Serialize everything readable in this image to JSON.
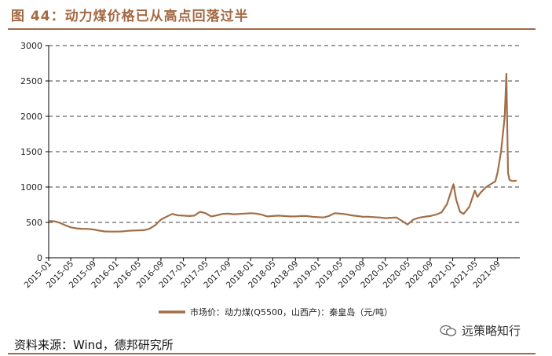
{
  "header": {
    "title": "图 44：动力煤价格已从高点回落过半"
  },
  "footer": {
    "source": "资料来源：Wind，德邦研究所"
  },
  "watermark": {
    "text": "远策略知行",
    "icon": "wechat-icon"
  },
  "colors": {
    "accent": "#a56a44",
    "series": "#a26e47",
    "grid": "#000000"
  },
  "chart_data": {
    "type": "line",
    "title": "",
    "xlabel": "",
    "ylabel": "",
    "ylim": [
      0,
      3000
    ],
    "yticks": [
      0,
      500,
      1000,
      1500,
      2000,
      2500,
      3000
    ],
    "grid": "horizontal dashed",
    "legend": "bottom-center",
    "x_tick_labels": [
      "2015-01",
      "2015-05",
      "2015-09",
      "2016-01",
      "2016-05",
      "2016-09",
      "2017-01",
      "2017-05",
      "2017-09",
      "2018-01",
      "2018-05",
      "2018-09",
      "2019-01",
      "2019-05",
      "2019-09",
      "2020-01",
      "2020-05",
      "2020-09",
      "2021-01",
      "2021-05",
      "2021-09"
    ],
    "series": [
      {
        "name": "市场价：动力煤(Q5500，山西产)：秦皇岛（元/吨）",
        "points": [
          [
            "2015-01-05",
            520
          ],
          [
            "2015-02-01",
            515
          ],
          [
            "2015-03-01",
            495
          ],
          [
            "2015-04-01",
            460
          ],
          [
            "2015-05-01",
            430
          ],
          [
            "2015-06-01",
            415
          ],
          [
            "2015-07-01",
            410
          ],
          [
            "2015-08-01",
            408
          ],
          [
            "2015-09-01",
            400
          ],
          [
            "2015-10-01",
            385
          ],
          [
            "2015-11-01",
            372
          ],
          [
            "2015-12-01",
            370
          ],
          [
            "2016-01-01",
            370
          ],
          [
            "2016-02-01",
            372
          ],
          [
            "2016-03-01",
            380
          ],
          [
            "2016-04-01",
            385
          ],
          [
            "2016-05-01",
            388
          ],
          [
            "2016-06-01",
            390
          ],
          [
            "2016-07-01",
            410
          ],
          [
            "2016-08-01",
            460
          ],
          [
            "2016-09-01",
            540
          ],
          [
            "2016-10-01",
            580
          ],
          [
            "2016-11-01",
            620
          ],
          [
            "2016-12-01",
            600
          ],
          [
            "2017-01-01",
            595
          ],
          [
            "2017-02-01",
            590
          ],
          [
            "2017-03-01",
            595
          ],
          [
            "2017-04-01",
            650
          ],
          [
            "2017-05-01",
            630
          ],
          [
            "2017-06-01",
            585
          ],
          [
            "2017-07-01",
            600
          ],
          [
            "2017-08-01",
            620
          ],
          [
            "2017-09-01",
            625
          ],
          [
            "2017-10-01",
            615
          ],
          [
            "2017-11-01",
            620
          ],
          [
            "2017-12-01",
            625
          ],
          [
            "2018-01-01",
            630
          ],
          [
            "2018-02-01",
            625
          ],
          [
            "2018-03-01",
            610
          ],
          [
            "2018-04-01",
            585
          ],
          [
            "2018-05-01",
            590
          ],
          [
            "2018-06-01",
            595
          ],
          [
            "2018-07-01",
            590
          ],
          [
            "2018-08-01",
            585
          ],
          [
            "2018-09-01",
            585
          ],
          [
            "2018-10-01",
            590
          ],
          [
            "2018-11-01",
            590
          ],
          [
            "2018-12-01",
            580
          ],
          [
            "2019-01-01",
            575
          ],
          [
            "2019-02-01",
            570
          ],
          [
            "2019-03-01",
            590
          ],
          [
            "2019-04-01",
            630
          ],
          [
            "2019-05-01",
            625
          ],
          [
            "2019-06-01",
            615
          ],
          [
            "2019-07-01",
            600
          ],
          [
            "2019-08-01",
            590
          ],
          [
            "2019-09-01",
            580
          ],
          [
            "2019-10-01",
            580
          ],
          [
            "2019-11-01",
            575
          ],
          [
            "2019-12-01",
            570
          ],
          [
            "2020-01-01",
            560
          ],
          [
            "2020-02-01",
            565
          ],
          [
            "2020-03-01",
            570
          ],
          [
            "2020-04-01",
            520
          ],
          [
            "2020-05-01",
            470
          ],
          [
            "2020-06-01",
            540
          ],
          [
            "2020-07-01",
            565
          ],
          [
            "2020-08-01",
            580
          ],
          [
            "2020-09-01",
            590
          ],
          [
            "2020-10-01",
            610
          ],
          [
            "2020-11-01",
            640
          ],
          [
            "2020-12-01",
            760
          ],
          [
            "2021-01-05",
            1040
          ],
          [
            "2021-01-20",
            820
          ],
          [
            "2021-02-10",
            650
          ],
          [
            "2021-03-01",
            620
          ],
          [
            "2021-04-01",
            720
          ],
          [
            "2021-05-01",
            950
          ],
          [
            "2021-05-15",
            860
          ],
          [
            "2021-06-01",
            920
          ],
          [
            "2021-07-01",
            1000
          ],
          [
            "2021-08-01",
            1050
          ],
          [
            "2021-08-20",
            1080
          ],
          [
            "2021-09-01",
            1200
          ],
          [
            "2021-09-20",
            1500
          ],
          [
            "2021-10-10",
            2000
          ],
          [
            "2021-10-19",
            2600
          ],
          [
            "2021-10-28",
            1200
          ],
          [
            "2021-11-05",
            1100
          ],
          [
            "2021-11-20",
            1085
          ],
          [
            "2021-12-10",
            1090
          ]
        ]
      }
    ]
  }
}
